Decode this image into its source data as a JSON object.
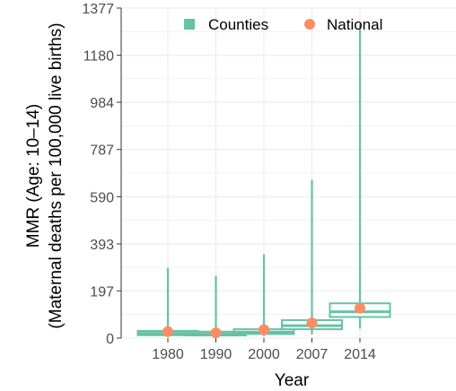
{
  "chart_data": {
    "type": "boxplot",
    "xlabel": "Year",
    "ylabel_line1": "MMR (Age: 10–14)",
    "ylabel_line2": "(Maternal deaths per 100,000 live births)",
    "categories": [
      "1980",
      "1990",
      "2000",
      "2007",
      "2014"
    ],
    "yticks": [
      0,
      197,
      393,
      590,
      787,
      984,
      1180,
      1377
    ],
    "ylim": [
      0,
      1377
    ],
    "legend": {
      "position": "top",
      "items": [
        {
          "label": "Counties",
          "color": "#66c2a5",
          "shape": "square"
        },
        {
          "label": "National",
          "color": "#fc8d62",
          "shape": "circle"
        }
      ]
    },
    "series": [
      {
        "name": "Counties",
        "boxes": [
          {
            "year": "1980",
            "min": 5,
            "q1": 12,
            "median": 20,
            "q3": 30,
            "max": 293
          },
          {
            "year": "1990",
            "min": 5,
            "q1": 11,
            "median": 18,
            "q3": 27,
            "max": 260
          },
          {
            "year": "2000",
            "min": 8,
            "q1": 17,
            "median": 25,
            "q3": 37,
            "max": 350
          },
          {
            "year": "2007",
            "min": 15,
            "q1": 37,
            "median": 52,
            "q3": 75,
            "max": 660
          },
          {
            "year": "2014",
            "min": 40,
            "q1": 88,
            "median": 110,
            "q3": 145,
            "max": 1310
          }
        ]
      },
      {
        "name": "National",
        "points": [
          {
            "year": "1980",
            "value": 27
          },
          {
            "year": "1990",
            "value": 22
          },
          {
            "year": "2000",
            "value": 35
          },
          {
            "year": "2007",
            "value": 63
          },
          {
            "year": "2014",
            "value": 125
          }
        ]
      }
    ],
    "grid": true,
    "colors": {
      "counties": "#66c2a5",
      "national": "#fc8d62",
      "grid": "#ebebeb"
    }
  }
}
